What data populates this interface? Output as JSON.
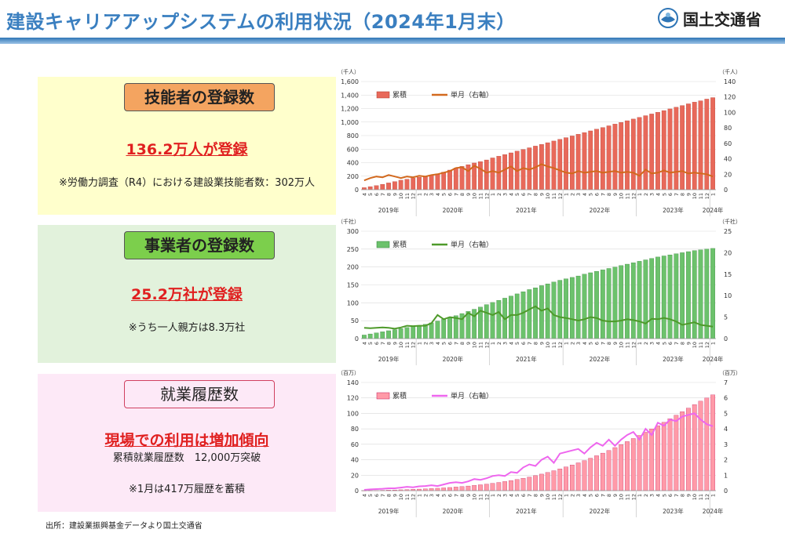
{
  "header": {
    "title": "建設キャリアアップシステムの利用状況（2024年1月末）",
    "org": "国土交通省"
  },
  "panels": {
    "p1": {
      "heading": "技能者の登録数",
      "big": "136.2万人が登録",
      "note": "※労働力調査（R4）における建設業技能者数：302万人"
    },
    "p2": {
      "heading": "事業者の登録数",
      "big": "25.2万社が登録",
      "note": "※うち一人親方は8.3万社"
    },
    "p3": {
      "heading": "就業履歴数",
      "big": "現場での利用は増加傾向",
      "note1": "累積就業履歴数　12,000万突破",
      "note2": "※1月は417万履歴を蓄積"
    }
  },
  "source": "出所：建設業振興基金データより国土交通省",
  "colors": {
    "red_bar": "#e8695a",
    "red_line": "#d2691e",
    "green_bar": "#6cc26c",
    "green_line": "#4e9a2a",
    "pink_bar": "#ff9aa8",
    "pink_line": "#ee66ee",
    "title": "#3a7fc0"
  },
  "chart_data": [
    {
      "type": "bar",
      "title": "",
      "left_unit": "（千人）",
      "right_unit": "（千人）",
      "left_ticks": [
        "0",
        "200",
        "400",
        "600",
        "800",
        "1,000",
        "1,200",
        "1,400",
        "1,600"
      ],
      "right_ticks": [
        "0",
        "20",
        "40",
        "60",
        "80",
        "100",
        "120",
        "140"
      ],
      "ylim": [
        0,
        1600
      ],
      "y2lim": [
        0,
        140
      ],
      "years": [
        "2019年",
        "2020年",
        "2021年",
        "2022年",
        "2023年",
        "2024年"
      ],
      "months": [
        "4",
        "5",
        "6",
        "7",
        "8",
        "9",
        "10",
        "11",
        "12",
        "1",
        "2",
        "3",
        "4",
        "5",
        "6",
        "7",
        "8",
        "9",
        "10",
        "11",
        "12",
        "1",
        "2",
        "3",
        "4",
        "5",
        "6",
        "7",
        "8",
        "9",
        "10",
        "11",
        "12",
        "1",
        "2",
        "3",
        "4",
        "5",
        "6",
        "7",
        "8",
        "9",
        "10",
        "11",
        "12",
        "1",
        "2",
        "3",
        "4",
        "5",
        "6",
        "7",
        "8",
        "9",
        "10",
        "11",
        "12",
        "1"
      ],
      "series": [
        {
          "name": "累積",
          "axis": "left",
          "values": [
            30,
            45,
            60,
            80,
            100,
            120,
            140,
            155,
            170,
            185,
            200,
            215,
            235,
            260,
            290,
            320,
            345,
            370,
            395,
            415,
            440,
            470,
            495,
            520,
            545,
            570,
            595,
            620,
            645,
            670,
            695,
            720,
            745,
            770,
            795,
            820,
            845,
            870,
            895,
            920,
            945,
            970,
            995,
            1020,
            1045,
            1070,
            1095,
            1120,
            1145,
            1170,
            1195,
            1220,
            1245,
            1270,
            1295,
            1315,
            1340,
            1362
          ]
        },
        {
          "name": "単月（右軸）",
          "axis": "right",
          "values": [
            12,
            15,
            17,
            16,
            19,
            17,
            15,
            17,
            16,
            18,
            17,
            19,
            20,
            22,
            24,
            28,
            29,
            24,
            31,
            27,
            22,
            24,
            22,
            26,
            30,
            24,
            28,
            26,
            29,
            33,
            30,
            28,
            25,
            22,
            21,
            24,
            22,
            23,
            24,
            22,
            23,
            24,
            22,
            23,
            22,
            18,
            26,
            21,
            22,
            25,
            22,
            23,
            24,
            21,
            22,
            21,
            20,
            17
          ]
        }
      ]
    },
    {
      "type": "bar",
      "title": "",
      "left_unit": "（千社）",
      "right_unit": "（千社）",
      "left_ticks": [
        "0",
        "50",
        "100",
        "150",
        "200",
        "250",
        "300"
      ],
      "right_ticks": [
        "0",
        "5",
        "10",
        "15",
        "20",
        "25"
      ],
      "ylim": [
        0,
        300
      ],
      "y2lim": [
        0,
        25
      ],
      "years": [
        "2019年",
        "2020年",
        "2021年",
        "2022年",
        "2023年",
        "2024年"
      ],
      "series": [
        {
          "name": "累積",
          "axis": "left",
          "values": [
            10,
            13,
            16,
            19,
            22,
            25,
            28,
            31,
            34,
            37,
            40,
            44,
            49,
            54,
            59,
            64,
            70,
            76,
            82,
            88,
            95,
            101,
            107,
            113,
            119,
            125,
            131,
            137,
            142,
            148,
            153,
            158,
            163,
            167,
            171,
            175,
            180,
            184,
            188,
            192,
            196,
            200,
            204,
            208,
            212,
            216,
            220,
            224,
            228,
            231,
            234,
            237,
            240,
            243,
            246,
            248,
            250,
            252
          ]
        },
        {
          "name": "単月（右軸）",
          "axis": "right",
          "values": [
            2.5,
            2.4,
            2.5,
            2.6,
            2.5,
            2.3,
            2.6,
            3.0,
            2.9,
            3.0,
            3.0,
            3.6,
            5.5,
            4.5,
            5.0,
            4.8,
            4.5,
            6.0,
            5.2,
            6.5,
            6.0,
            5.5,
            6.2,
            4.5,
            5.5,
            5.5,
            6.0,
            6.8,
            7.5,
            6.5,
            7.0,
            5.5,
            5.0,
            4.8,
            4.5,
            4.2,
            4.5,
            5.0,
            4.8,
            4.2,
            4.0,
            4.0,
            4.2,
            4.5,
            4.3,
            4.0,
            3.5,
            4.6,
            4.5,
            4.8,
            4.5,
            4.0,
            3.2,
            3.5,
            3.8,
            3.2,
            3.0,
            2.8
          ]
        }
      ]
    },
    {
      "type": "bar",
      "title": "",
      "left_unit": "（百万）",
      "right_unit": "（百万）",
      "left_ticks": [
        "0",
        "20",
        "40",
        "60",
        "80",
        "100",
        "120",
        "140"
      ],
      "right_ticks": [
        "0",
        "1",
        "2",
        "3",
        "4",
        "5",
        "6",
        "7"
      ],
      "ylim": [
        0,
        140
      ],
      "y2lim": [
        0,
        7
      ],
      "years": [
        "2019年",
        "2020年",
        "2021年",
        "2022年",
        "2023年",
        "2024年"
      ],
      "series": [
        {
          "name": "累積",
          "axis": "left",
          "values": [
            0.1,
            0.2,
            0.3,
            0.5,
            0.7,
            0.9,
            1.1,
            1.4,
            1.7,
            2.0,
            2.3,
            2.7,
            3.1,
            3.6,
            4.1,
            4.7,
            5.3,
            6.0,
            6.8,
            7.6,
            8.5,
            9.5,
            10.6,
            11.8,
            13.1,
            14.5,
            16.0,
            17.6,
            19.4,
            21.4,
            23.5,
            25.8,
            28.2,
            30.7,
            33.3,
            36.0,
            38.9,
            42.0,
            45.2,
            48.6,
            52.1,
            55.8,
            59.6,
            63.5,
            67.5,
            71.5,
            75.6,
            79.8,
            84.1,
            88.5,
            93.0,
            97.6,
            102.3,
            106.9,
            111.4,
            115.8,
            119.9,
            124.0
          ]
        },
        {
          "name": "単月（右軸）",
          "axis": "right",
          "values": [
            0.05,
            0.08,
            0.1,
            0.12,
            0.15,
            0.15,
            0.2,
            0.25,
            0.22,
            0.28,
            0.3,
            0.35,
            0.3,
            0.4,
            0.5,
            0.55,
            0.5,
            0.6,
            0.75,
            0.7,
            0.8,
            0.95,
            1.0,
            0.95,
            1.2,
            1.15,
            1.5,
            1.7,
            1.6,
            2.0,
            2.2,
            1.8,
            2.4,
            2.5,
            2.6,
            2.7,
            2.4,
            2.8,
            3.1,
            2.9,
            3.3,
            2.9,
            3.3,
            3.6,
            3.8,
            3.3,
            4.0,
            3.6,
            4.4,
            4.2,
            4.6,
            4.5,
            4.8,
            4.9,
            5.0,
            4.6,
            4.3,
            4.17
          ]
        }
      ]
    }
  ]
}
